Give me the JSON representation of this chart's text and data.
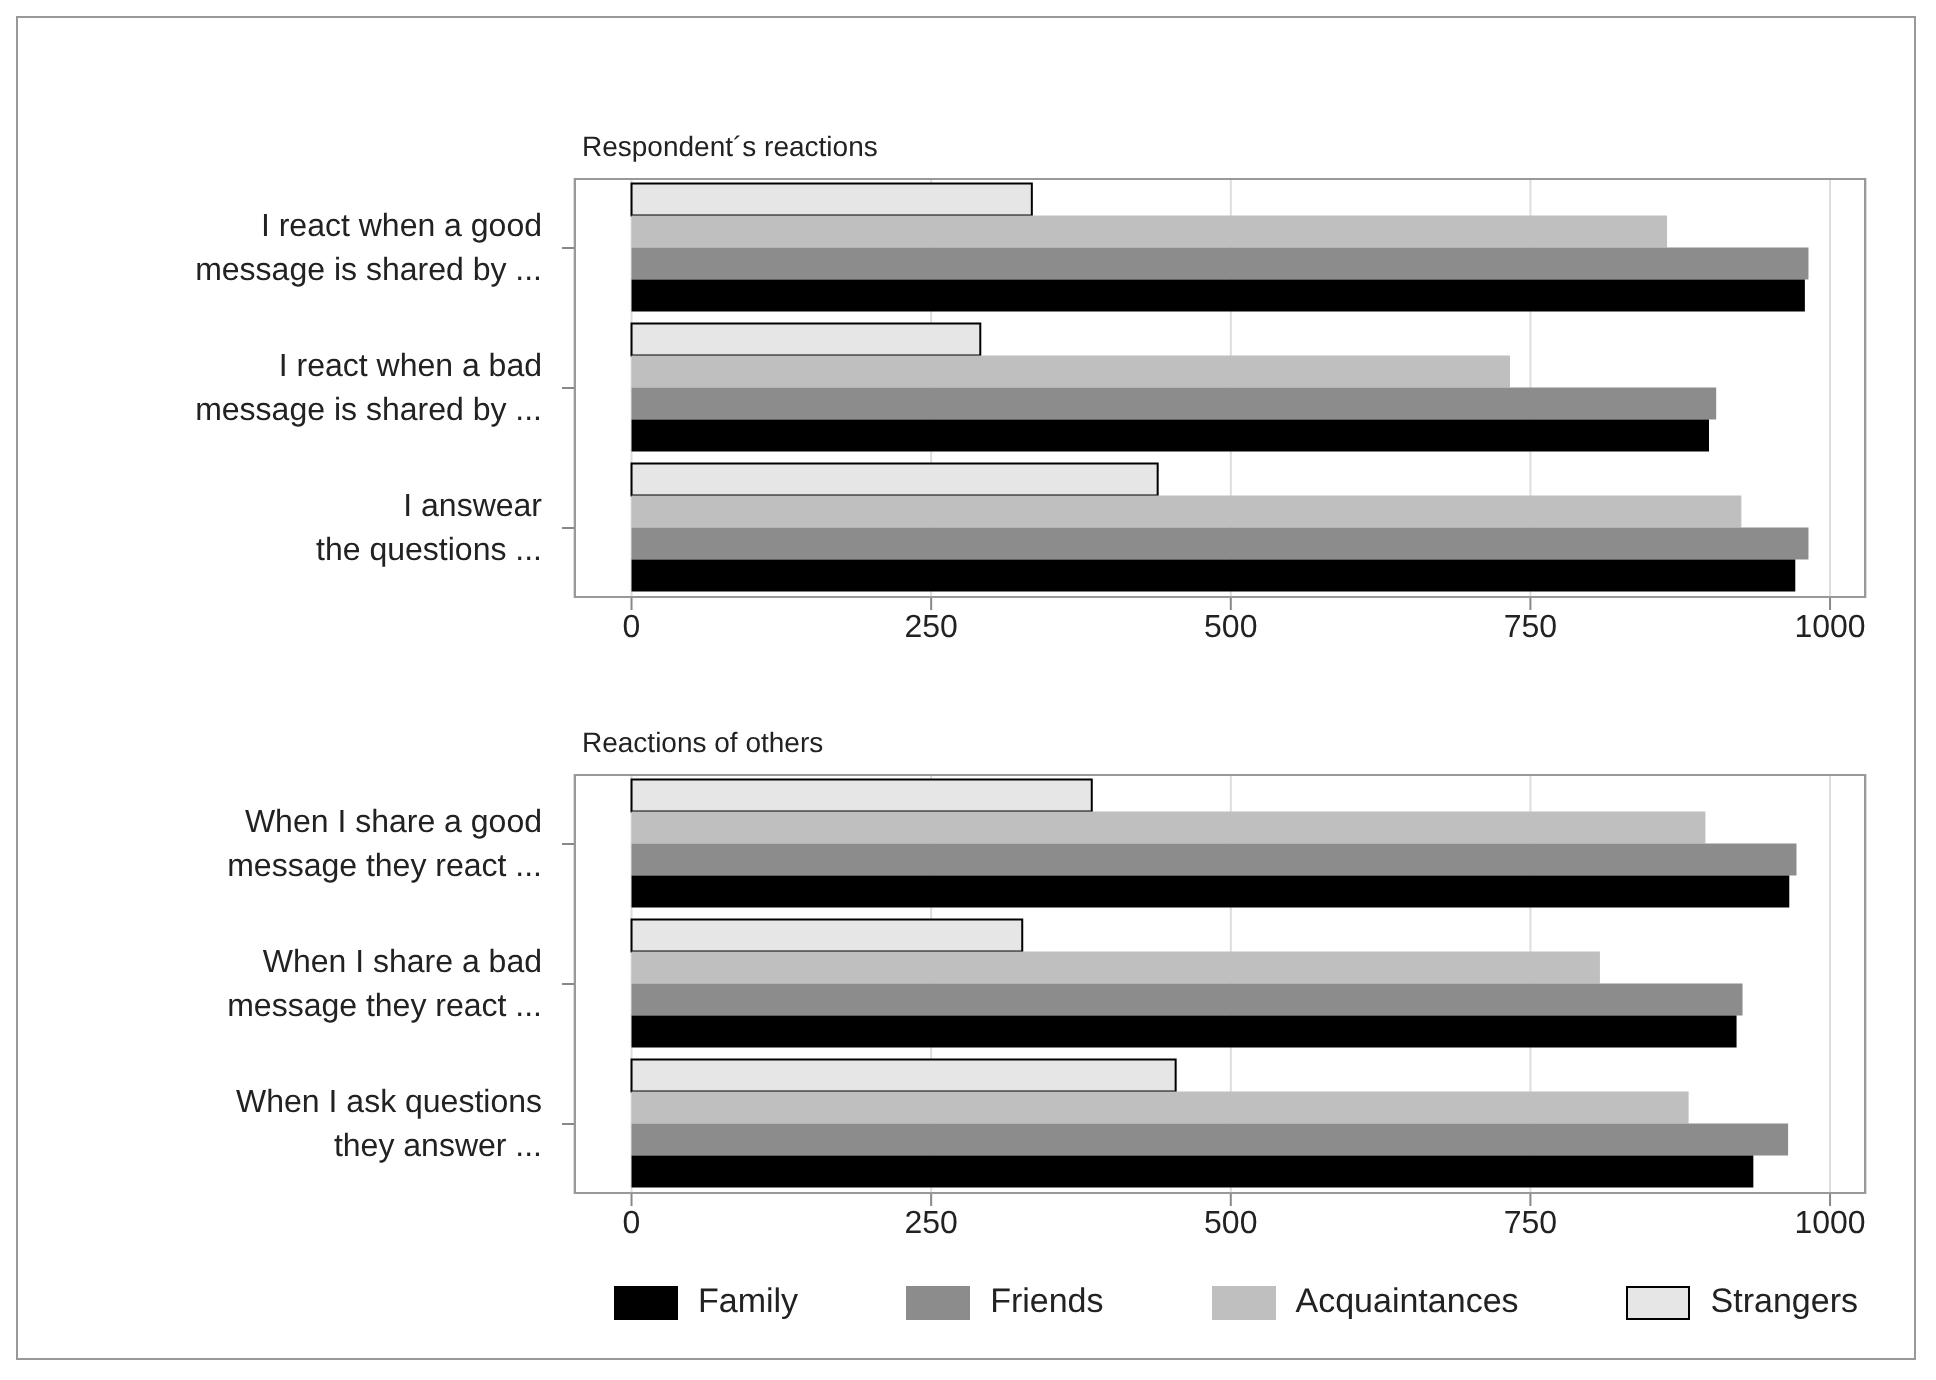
{
  "chart_data": [
    {
      "type": "bar",
      "orientation": "horizontal",
      "title": "Respondent´s reactions",
      "categories": [
        "I react when a good\nmessage is shared by ...",
        "I react when a bad\nmessage is shared by ...",
        "I answear\nthe questions ..."
      ],
      "series": [
        {
          "color": "#000000",
          "values": [
            979,
            899,
            971
          ]
        },
        {
          "color": "#8c8c8c",
          "values": [
            982,
            905,
            982
          ]
        },
        {
          "color": "#bfbfbf",
          "values": [
            864,
            733,
            926
          ]
        },
        {
          "color": "#e6e6e6",
          "values": [
            334,
            291,
            439
          ]
        }
      ],
      "xlim": [
        -48,
        1030
      ],
      "xticks": [
        0,
        250,
        500,
        750,
        1000
      ],
      "grid": "x",
      "legend": false
    },
    {
      "type": "bar",
      "orientation": "horizontal",
      "title": "Reactions of others",
      "categories": [
        "When I share a good\nmessage they react ...",
        "When I share a bad\nmessage they react ...",
        "When I ask questions\nthey answer ..."
      ],
      "series": [
        {
          "name": "Family",
          "color": "#000000",
          "values": [
            966,
            922,
            936
          ]
        },
        {
          "name": "Friends",
          "color": "#8c8c8c",
          "values": [
            972,
            927,
            965
          ]
        },
        {
          "name": "Acquaintances",
          "color": "#bfbfbf",
          "values": [
            896,
            808,
            882
          ]
        },
        {
          "name": "Strangers",
          "color": "#e6e6e6",
          "values": [
            384,
            326,
            454
          ]
        }
      ],
      "xlim": [
        -48,
        1030
      ],
      "xticks": [
        0,
        250,
        500,
        750,
        1000
      ],
      "grid": "x",
      "legend": "bottom"
    }
  ]
}
